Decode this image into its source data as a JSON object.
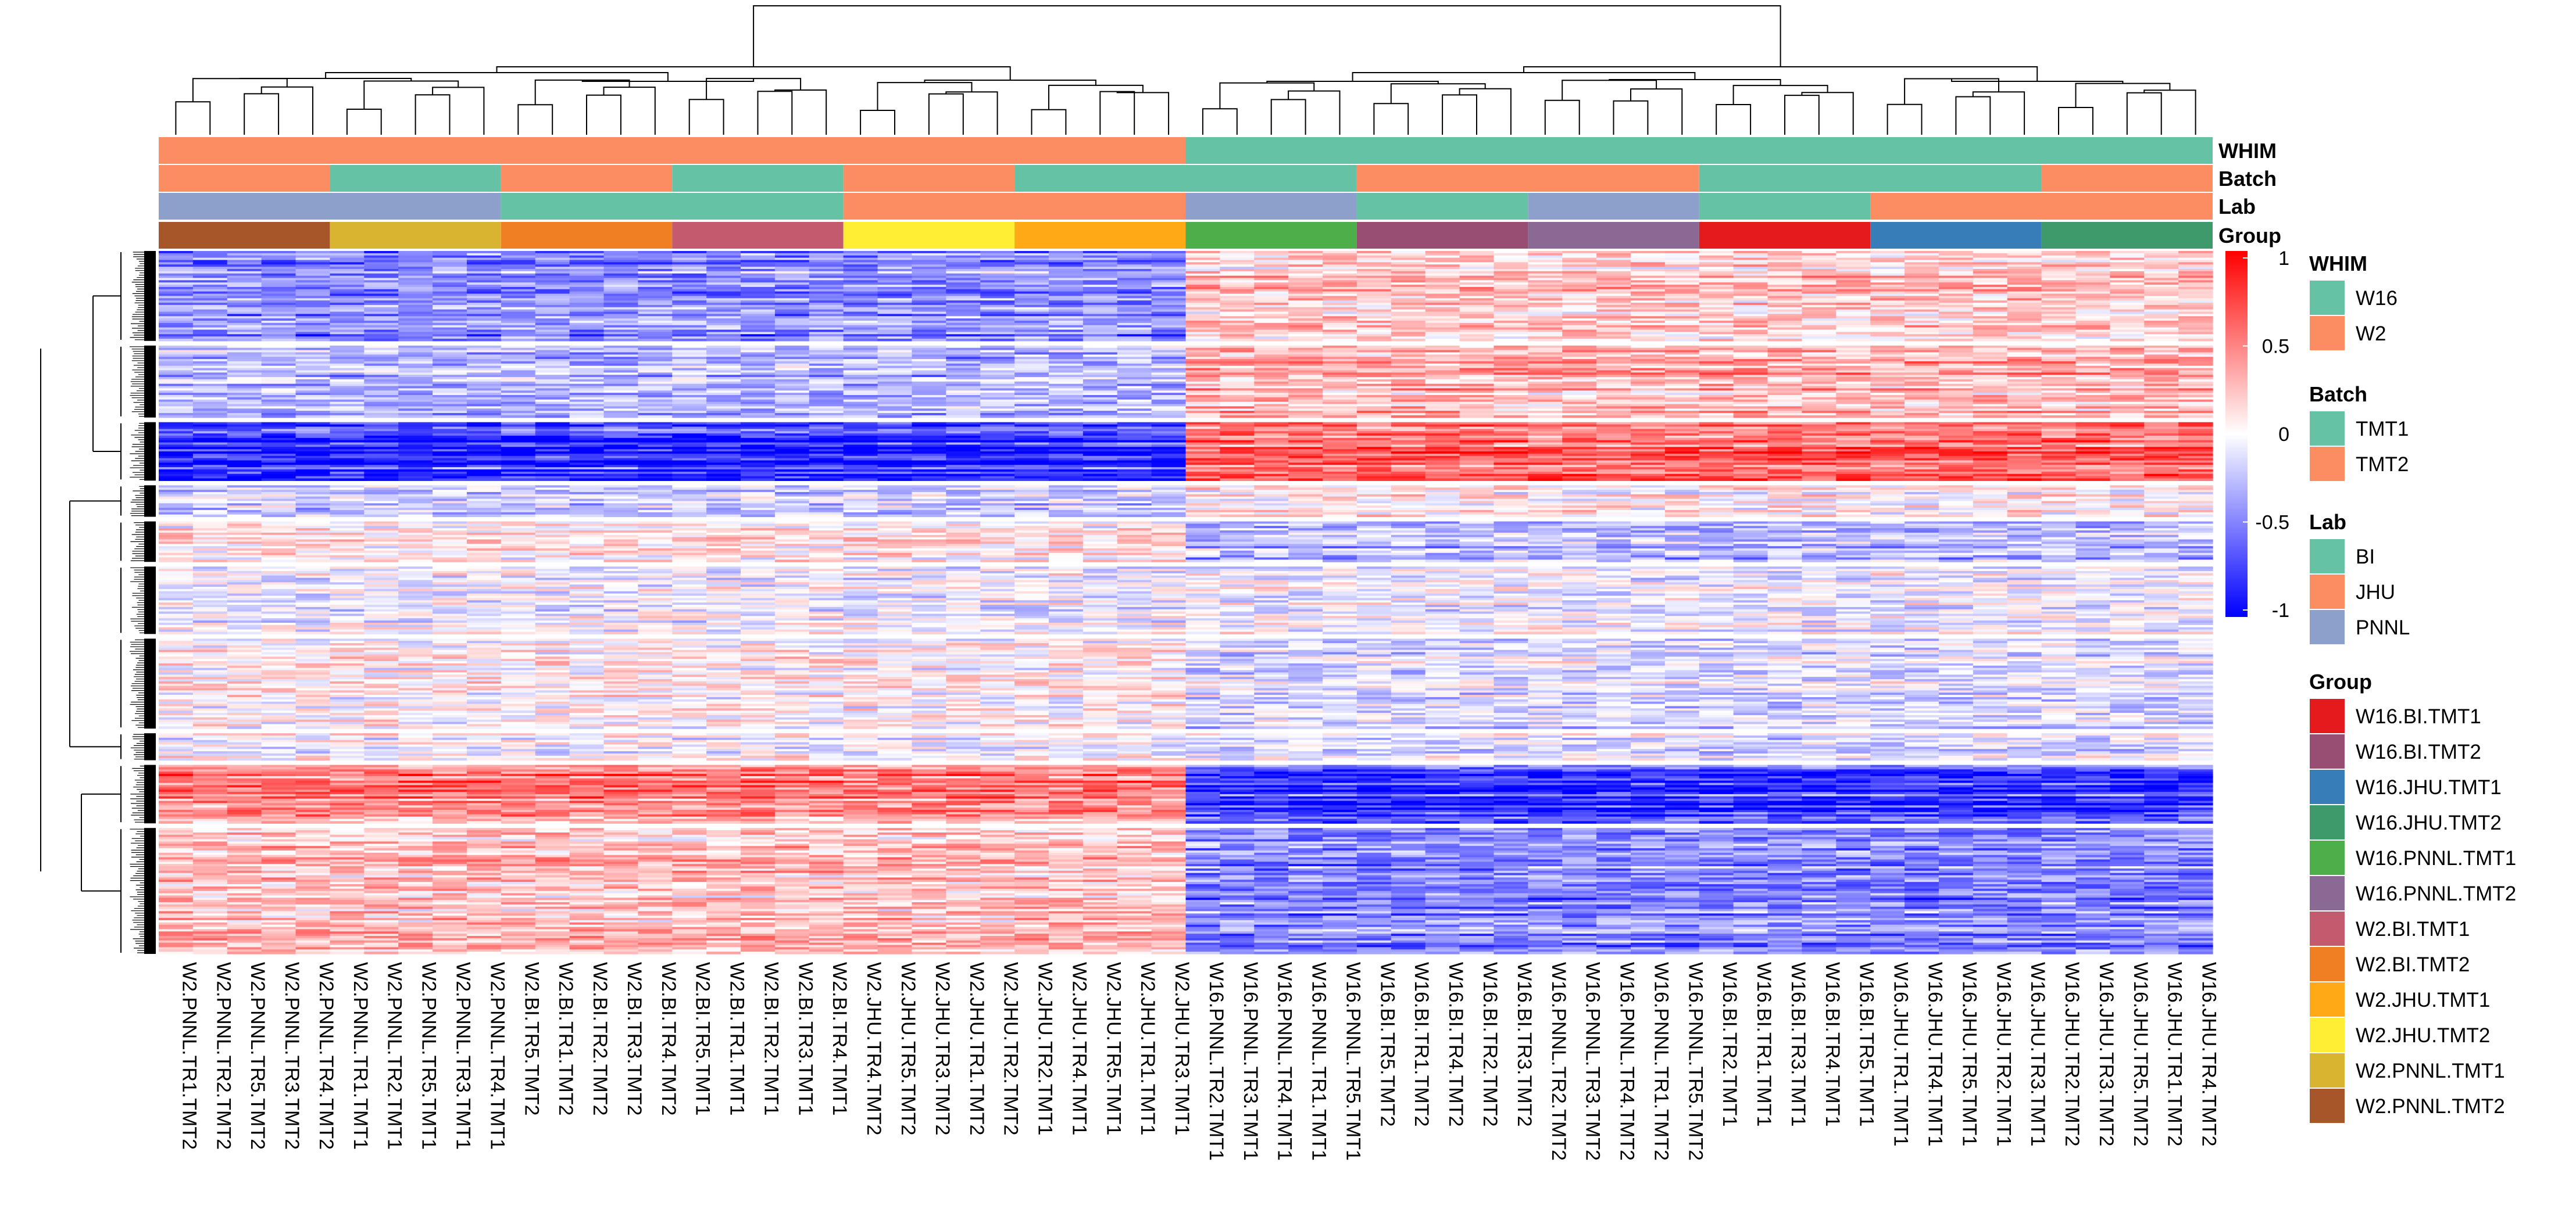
{
  "chart_data": {
    "type": "heatmap",
    "title": "",
    "annotation_tracks": [
      "WHIM",
      "Batch",
      "Lab",
      "Group"
    ],
    "columns": [
      {
        "name": "W2.PNNL.TR1.TMT2",
        "WHIM": "W2",
        "Batch": "TMT2",
        "Lab": "PNNL",
        "Group": "W2.PNNL.TMT2"
      },
      {
        "name": "W2.PNNL.TR2.TMT2",
        "WHIM": "W2",
        "Batch": "TMT2",
        "Lab": "PNNL",
        "Group": "W2.PNNL.TMT2"
      },
      {
        "name": "W2.PNNL.TR5.TMT2",
        "WHIM": "W2",
        "Batch": "TMT2",
        "Lab": "PNNL",
        "Group": "W2.PNNL.TMT2"
      },
      {
        "name": "W2.PNNL.TR3.TMT2",
        "WHIM": "W2",
        "Batch": "TMT2",
        "Lab": "PNNL",
        "Group": "W2.PNNL.TMT2"
      },
      {
        "name": "W2.PNNL.TR4.TMT2",
        "WHIM": "W2",
        "Batch": "TMT2",
        "Lab": "PNNL",
        "Group": "W2.PNNL.TMT2"
      },
      {
        "name": "W2.PNNL.TR1.TMT1",
        "WHIM": "W2",
        "Batch": "TMT1",
        "Lab": "PNNL",
        "Group": "W2.PNNL.TMT1"
      },
      {
        "name": "W2.PNNL.TR2.TMT1",
        "WHIM": "W2",
        "Batch": "TMT1",
        "Lab": "PNNL",
        "Group": "W2.PNNL.TMT1"
      },
      {
        "name": "W2.PNNL.TR5.TMT1",
        "WHIM": "W2",
        "Batch": "TMT1",
        "Lab": "PNNL",
        "Group": "W2.PNNL.TMT1"
      },
      {
        "name": "W2.PNNL.TR3.TMT1",
        "WHIM": "W2",
        "Batch": "TMT1",
        "Lab": "PNNL",
        "Group": "W2.PNNL.TMT1"
      },
      {
        "name": "W2.PNNL.TR4.TMT1",
        "WHIM": "W2",
        "Batch": "TMT1",
        "Lab": "PNNL",
        "Group": "W2.PNNL.TMT1"
      },
      {
        "name": "W2.BI.TR5.TMT2",
        "WHIM": "W2",
        "Batch": "TMT2",
        "Lab": "BI",
        "Group": "W2.BI.TMT2"
      },
      {
        "name": "W2.BI.TR1.TMT2",
        "WHIM": "W2",
        "Batch": "TMT2",
        "Lab": "BI",
        "Group": "W2.BI.TMT2"
      },
      {
        "name": "W2.BI.TR2.TMT2",
        "WHIM": "W2",
        "Batch": "TMT2",
        "Lab": "BI",
        "Group": "W2.BI.TMT2"
      },
      {
        "name": "W2.BI.TR3.TMT2",
        "WHIM": "W2",
        "Batch": "TMT2",
        "Lab": "BI",
        "Group": "W2.BI.TMT2"
      },
      {
        "name": "W2.BI.TR4.TMT2",
        "WHIM": "W2",
        "Batch": "TMT2",
        "Lab": "BI",
        "Group": "W2.BI.TMT2"
      },
      {
        "name": "W2.BI.TR5.TMT1",
        "WHIM": "W2",
        "Batch": "TMT1",
        "Lab": "BI",
        "Group": "W2.BI.TMT1"
      },
      {
        "name": "W2.BI.TR1.TMT1",
        "WHIM": "W2",
        "Batch": "TMT1",
        "Lab": "BI",
        "Group": "W2.BI.TMT1"
      },
      {
        "name": "W2.BI.TR2.TMT1",
        "WHIM": "W2",
        "Batch": "TMT1",
        "Lab": "BI",
        "Group": "W2.BI.TMT1"
      },
      {
        "name": "W2.BI.TR3.TMT1",
        "WHIM": "W2",
        "Batch": "TMT1",
        "Lab": "BI",
        "Group": "W2.BI.TMT1"
      },
      {
        "name": "W2.BI.TR4.TMT1",
        "WHIM": "W2",
        "Batch": "TMT1",
        "Lab": "BI",
        "Group": "W2.BI.TMT1"
      },
      {
        "name": "W2.JHU.TR4.TMT2",
        "WHIM": "W2",
        "Batch": "TMT2",
        "Lab": "JHU",
        "Group": "W2.JHU.TMT2"
      },
      {
        "name": "W2.JHU.TR5.TMT2",
        "WHIM": "W2",
        "Batch": "TMT2",
        "Lab": "JHU",
        "Group": "W2.JHU.TMT2"
      },
      {
        "name": "W2.JHU.TR3.TMT2",
        "WHIM": "W2",
        "Batch": "TMT2",
        "Lab": "JHU",
        "Group": "W2.JHU.TMT2"
      },
      {
        "name": "W2.JHU.TR1.TMT2",
        "WHIM": "W2",
        "Batch": "TMT2",
        "Lab": "JHU",
        "Group": "W2.JHU.TMT2"
      },
      {
        "name": "W2.JHU.TR2.TMT2",
        "WHIM": "W2",
        "Batch": "TMT2",
        "Lab": "JHU",
        "Group": "W2.JHU.TMT2"
      },
      {
        "name": "W2.JHU.TR2.TMT1",
        "WHIM": "W2",
        "Batch": "TMT1",
        "Lab": "JHU",
        "Group": "W2.JHU.TMT1"
      },
      {
        "name": "W2.JHU.TR4.TMT1",
        "WHIM": "W2",
        "Batch": "TMT1",
        "Lab": "JHU",
        "Group": "W2.JHU.TMT1"
      },
      {
        "name": "W2.JHU.TR5.TMT1",
        "WHIM": "W2",
        "Batch": "TMT1",
        "Lab": "JHU",
        "Group": "W2.JHU.TMT1"
      },
      {
        "name": "W2.JHU.TR1.TMT1",
        "WHIM": "W2",
        "Batch": "TMT1",
        "Lab": "JHU",
        "Group": "W2.JHU.TMT1"
      },
      {
        "name": "W2.JHU.TR3.TMT1",
        "WHIM": "W2",
        "Batch": "TMT1",
        "Lab": "JHU",
        "Group": "W2.JHU.TMT1"
      },
      {
        "name": "W16.PNNL.TR2.TMT1",
        "WHIM": "W16",
        "Batch": "TMT1",
        "Lab": "PNNL",
        "Group": "W16.PNNL.TMT1"
      },
      {
        "name": "W16.PNNL.TR3.TMT1",
        "WHIM": "W16",
        "Batch": "TMT1",
        "Lab": "PNNL",
        "Group": "W16.PNNL.TMT1"
      },
      {
        "name": "W16.PNNL.TR4.TMT1",
        "WHIM": "W16",
        "Batch": "TMT1",
        "Lab": "PNNL",
        "Group": "W16.PNNL.TMT1"
      },
      {
        "name": "W16.PNNL.TR1.TMT1",
        "WHIM": "W16",
        "Batch": "TMT1",
        "Lab": "PNNL",
        "Group": "W16.PNNL.TMT1"
      },
      {
        "name": "W16.PNNL.TR5.TMT1",
        "WHIM": "W16",
        "Batch": "TMT1",
        "Lab": "PNNL",
        "Group": "W16.PNNL.TMT1"
      },
      {
        "name": "W16.BI.TR5.TMT2",
        "WHIM": "W16",
        "Batch": "TMT2",
        "Lab": "BI",
        "Group": "W16.BI.TMT2"
      },
      {
        "name": "W16.BI.TR1.TMT2",
        "WHIM": "W16",
        "Batch": "TMT2",
        "Lab": "BI",
        "Group": "W16.BI.TMT2"
      },
      {
        "name": "W16.BI.TR4.TMT2",
        "WHIM": "W16",
        "Batch": "TMT2",
        "Lab": "BI",
        "Group": "W16.BI.TMT2"
      },
      {
        "name": "W16.BI.TR2.TMT2",
        "WHIM": "W16",
        "Batch": "TMT2",
        "Lab": "BI",
        "Group": "W16.BI.TMT2"
      },
      {
        "name": "W16.BI.TR3.TMT2",
        "WHIM": "W16",
        "Batch": "TMT2",
        "Lab": "BI",
        "Group": "W16.BI.TMT2"
      },
      {
        "name": "W16.PNNL.TR2.TMT2",
        "WHIM": "W16",
        "Batch": "TMT2",
        "Lab": "PNNL",
        "Group": "W16.PNNL.TMT2"
      },
      {
        "name": "W16.PNNL.TR3.TMT2",
        "WHIM": "W16",
        "Batch": "TMT2",
        "Lab": "PNNL",
        "Group": "W16.PNNL.TMT2"
      },
      {
        "name": "W16.PNNL.TR4.TMT2",
        "WHIM": "W16",
        "Batch": "TMT2",
        "Lab": "PNNL",
        "Group": "W16.PNNL.TMT2"
      },
      {
        "name": "W16.PNNL.TR1.TMT2",
        "WHIM": "W16",
        "Batch": "TMT2",
        "Lab": "PNNL",
        "Group": "W16.PNNL.TMT2"
      },
      {
        "name": "W16.PNNL.TR5.TMT2",
        "WHIM": "W16",
        "Batch": "TMT2",
        "Lab": "PNNL",
        "Group": "W16.PNNL.TMT2"
      },
      {
        "name": "W16.BI.TR2.TMT1",
        "WHIM": "W16",
        "Batch": "TMT1",
        "Lab": "BI",
        "Group": "W16.BI.TMT1"
      },
      {
        "name": "W16.BI.TR1.TMT1",
        "WHIM": "W16",
        "Batch": "TMT1",
        "Lab": "BI",
        "Group": "W16.BI.TMT1"
      },
      {
        "name": "W16.BI.TR3.TMT1",
        "WHIM": "W16",
        "Batch": "TMT1",
        "Lab": "BI",
        "Group": "W16.BI.TMT1"
      },
      {
        "name": "W16.BI.TR4.TMT1",
        "WHIM": "W16",
        "Batch": "TMT1",
        "Lab": "BI",
        "Group": "W16.BI.TMT1"
      },
      {
        "name": "W16.BI.TR5.TMT1",
        "WHIM": "W16",
        "Batch": "TMT1",
        "Lab": "BI",
        "Group": "W16.BI.TMT1"
      },
      {
        "name": "W16.JHU.TR1.TMT1",
        "WHIM": "W16",
        "Batch": "TMT1",
        "Lab": "JHU",
        "Group": "W16.JHU.TMT1"
      },
      {
        "name": "W16.JHU.TR4.TMT1",
        "WHIM": "W16",
        "Batch": "TMT1",
        "Lab": "JHU",
        "Group": "W16.JHU.TMT1"
      },
      {
        "name": "W16.JHU.TR5.TMT1",
        "WHIM": "W16",
        "Batch": "TMT1",
        "Lab": "JHU",
        "Group": "W16.JHU.TMT1"
      },
      {
        "name": "W16.JHU.TR2.TMT1",
        "WHIM": "W16",
        "Batch": "TMT1",
        "Lab": "JHU",
        "Group": "W16.JHU.TMT1"
      },
      {
        "name": "W16.JHU.TR3.TMT1",
        "WHIM": "W16",
        "Batch": "TMT1",
        "Lab": "JHU",
        "Group": "W16.JHU.TMT1"
      },
      {
        "name": "W16.JHU.TR2.TMT2",
        "WHIM": "W16",
        "Batch": "TMT2",
        "Lab": "JHU",
        "Group": "W16.JHU.TMT2"
      },
      {
        "name": "W16.JHU.TR3.TMT2",
        "WHIM": "W16",
        "Batch": "TMT2",
        "Lab": "JHU",
        "Group": "W16.JHU.TMT2"
      },
      {
        "name": "W16.JHU.TR5.TMT2",
        "WHIM": "W16",
        "Batch": "TMT2",
        "Lab": "JHU",
        "Group": "W16.JHU.TMT2"
      },
      {
        "name": "W16.JHU.TR1.TMT2",
        "WHIM": "W16",
        "Batch": "TMT2",
        "Lab": "JHU",
        "Group": "W16.JHU.TMT2"
      },
      {
        "name": "W16.JHU.TR4.TMT2",
        "WHIM": "W16",
        "Batch": "TMT2",
        "Lab": "JHU",
        "Group": "W16.JHU.TMT2"
      }
    ],
    "row_clusters": [
      {
        "rows": 40,
        "w2_value": -0.45,
        "w16_value": 0.2
      },
      {
        "rows": 32,
        "w2_value": -0.3,
        "w16_value": 0.3
      },
      {
        "rows": 26,
        "w2_value": -0.85,
        "w16_value": 0.6
      },
      {
        "rows": 14,
        "w2_value": -0.2,
        "w16_value": 0.05
      },
      {
        "rows": 18,
        "w2_value": 0.05,
        "w16_value": -0.3
      },
      {
        "rows": 30,
        "w2_value": -0.05,
        "w16_value": -0.05
      },
      {
        "rows": 40,
        "w2_value": 0.05,
        "w16_value": -0.15
      },
      {
        "rows": 12,
        "w2_value": 0.0,
        "w16_value": -0.1
      },
      {
        "rows": 26,
        "w2_value": 0.45,
        "w16_value": -0.8
      },
      {
        "rows": 56,
        "w2_value": 0.25,
        "w16_value": -0.45
      }
    ],
    "color_scale": {
      "min": -1,
      "max": 1,
      "low": "#0000ff",
      "mid": "#ffffff",
      "high": "#ff0000",
      "ticks": [
        "1",
        "0.5",
        "0",
        "-0.5",
        "-1"
      ]
    },
    "legends": {
      "WHIM": {
        "title": "WHIM",
        "items": [
          {
            "label": "W16",
            "color": "#66c2a5"
          },
          {
            "label": "W2",
            "color": "#fc8d62"
          }
        ]
      },
      "Batch": {
        "title": "Batch",
        "items": [
          {
            "label": "TMT1",
            "color": "#66c2a5"
          },
          {
            "label": "TMT2",
            "color": "#fc8d62"
          }
        ]
      },
      "Lab": {
        "title": "Lab",
        "items": [
          {
            "label": "BI",
            "color": "#66c2a5"
          },
          {
            "label": "JHU",
            "color": "#fc8d62"
          },
          {
            "label": "PNNL",
            "color": "#8da0cb"
          }
        ]
      },
      "Group": {
        "title": "Group",
        "items": [
          {
            "label": "W16.BI.TMT1",
            "color": "#e41a1c"
          },
          {
            "label": "W16.BI.TMT2",
            "color": "#984e73"
          },
          {
            "label": "W16.JHU.TMT1",
            "color": "#377eb8"
          },
          {
            "label": "W16.JHU.TMT2",
            "color": "#3e9a6a"
          },
          {
            "label": "W16.PNNL.TMT1",
            "color": "#4daf4a"
          },
          {
            "label": "W16.PNNL.TMT2",
            "color": "#8a6a94"
          },
          {
            "label": "W2.BI.TMT1",
            "color": "#c45a6e"
          },
          {
            "label": "W2.BI.TMT2",
            "color": "#f07f24"
          },
          {
            "label": "W2.JHU.TMT1",
            "color": "#ffa916"
          },
          {
            "label": "W2.JHU.TMT2",
            "color": "#ffee33"
          },
          {
            "label": "W2.PNNL.TMT1",
            "color": "#d9b430"
          },
          {
            "label": "W2.PNNL.TMT2",
            "color": "#a65628"
          }
        ]
      }
    }
  }
}
